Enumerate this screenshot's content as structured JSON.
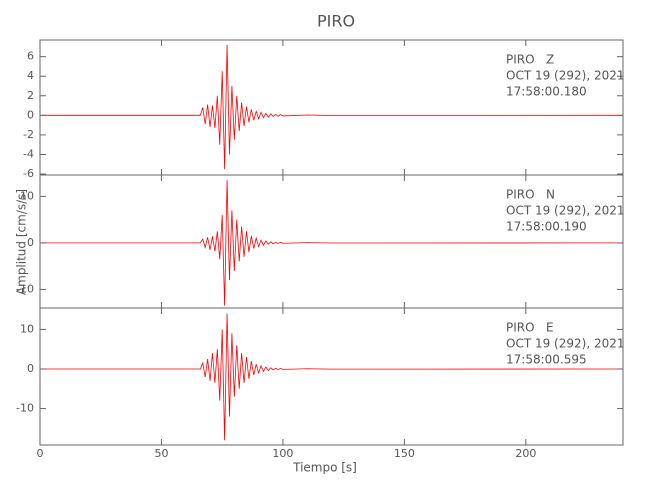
{
  "title": "PIRO",
  "x_label": "Tiempo [s]",
  "y_label": "Amplitud [cm/s/s]",
  "chart_data": [
    {
      "type": "line",
      "x": [
        0,
        66,
        67,
        68,
        69,
        70,
        71,
        72,
        73,
        74,
        75,
        76,
        77,
        78,
        79,
        80,
        81,
        82,
        83,
        84,
        85,
        86,
        87,
        88,
        89,
        90,
        91,
        92,
        93,
        94,
        95,
        96,
        97,
        98,
        99,
        100,
        110,
        120,
        240
      ],
      "series": [
        {
          "color": "#ff0000",
          "values": [
            0,
            0,
            0.8,
            -0.9,
            1.1,
            -1.2,
            1.0,
            -1.3,
            2.0,
            -3.0,
            4.5,
            -5.5,
            7.2,
            -4.0,
            3.0,
            -2.5,
            2.0,
            -1.6,
            1.3,
            -1.1,
            0.9,
            -0.7,
            0.6,
            -0.5,
            0.4,
            -0.35,
            0.3,
            -0.25,
            0.2,
            -0.2,
            0.15,
            -0.12,
            0.1,
            -0.1,
            0.08,
            -0.06,
            0.03,
            -0.02,
            0
          ]
        }
      ],
      "annotations": [
        "PIRO   Z",
        "OCT 19 (292), 2021",
        "17:58:00.180"
      ],
      "xlim": [
        0,
        240
      ],
      "ylim": [
        -6.1,
        7.7
      ],
      "yticks": [
        -6,
        -4,
        -2,
        0,
        2,
        4,
        6
      ]
    },
    {
      "type": "line",
      "x": [
        0,
        66,
        67,
        68,
        69,
        70,
        71,
        72,
        73,
        74,
        75,
        76,
        77,
        78,
        79,
        80,
        81,
        82,
        83,
        84,
        85,
        86,
        87,
        88,
        89,
        90,
        91,
        92,
        93,
        94,
        95,
        96,
        97,
        98,
        99,
        100,
        110,
        120,
        240
      ],
      "series": [
        {
          "color": "#ff0000",
          "values": [
            0,
            0,
            0.8,
            -1.0,
            1.2,
            -1.5,
            1.4,
            -1.8,
            2.5,
            -3.5,
            6,
            -13.5,
            13.5,
            -8,
            7,
            -6,
            5,
            -4,
            3.5,
            -3,
            2.5,
            -2,
            1.5,
            -1.2,
            1,
            -0.8,
            0.6,
            -0.5,
            0.4,
            -0.3,
            0.25,
            -0.2,
            0.15,
            -0.12,
            0.1,
            -0.08,
            0.05,
            -0.03,
            0
          ]
        }
      ],
      "annotations": [
        "PIRO   N",
        "OCT 19 (292), 2021",
        "17:58:00.190"
      ],
      "xlim": [
        0,
        240
      ],
      "ylim": [
        -14,
        14.6
      ],
      "yticks": [
        -10,
        0,
        10
      ]
    },
    {
      "type": "line",
      "x": [
        0,
        66,
        67,
        68,
        69,
        70,
        71,
        72,
        73,
        74,
        75,
        76,
        77,
        78,
        79,
        80,
        81,
        82,
        83,
        84,
        85,
        86,
        87,
        88,
        89,
        90,
        91,
        92,
        93,
        94,
        95,
        96,
        97,
        98,
        99,
        100,
        110,
        120,
        240
      ],
      "series": [
        {
          "color": "#ff0000",
          "values": [
            0,
            0,
            1.5,
            -2,
            2.5,
            -3,
            4,
            -3.5,
            5,
            -8,
            10,
            -18,
            14,
            -12,
            9,
            -7,
            6,
            -5,
            4,
            -3.5,
            3,
            -2.5,
            2,
            -1.5,
            1.2,
            -1,
            0.8,
            -0.6,
            0.5,
            -0.4,
            0.3,
            -0.25,
            0.2,
            -0.15,
            0.12,
            -0.1,
            0.06,
            -0.04,
            0
          ]
        }
      ],
      "annotations": [
        "PIRO   E",
        "OCT 19 (292), 2021",
        "17:58:00.595"
      ],
      "xlim": [
        0,
        240
      ],
      "ylim": [
        -19.2,
        15.4
      ],
      "yticks": [
        -10,
        0,
        10
      ],
      "xticks": [
        0,
        50,
        100,
        150,
        200
      ]
    }
  ]
}
